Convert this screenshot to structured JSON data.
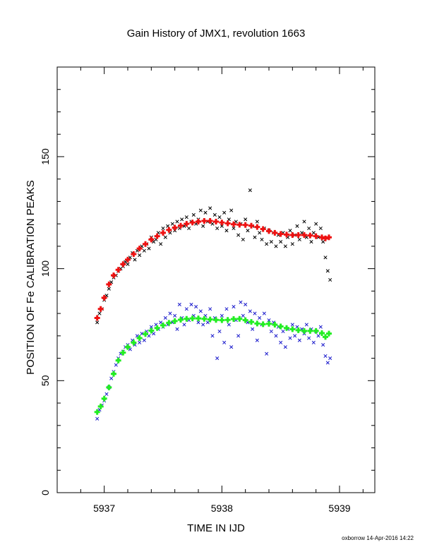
{
  "footer": "oxborrow 14-Apr-2016 14:22",
  "chart_data": {
    "type": "scatter",
    "title": "Gain History of JMX1, revolution 1663",
    "xlabel": "TIME IN IJD",
    "ylabel": "POSITION OF Fe CALIBRATION PEAKS",
    "xlim": [
      5936.6,
      5939.3
    ],
    "ylim": [
      0,
      190
    ],
    "x_ticks": [
      5937,
      5938,
      5939
    ],
    "x_tick_labels": [
      "5937",
      "5938",
      "5939"
    ],
    "y_ticks": [
      0,
      50,
      100,
      150
    ],
    "y_tick_labels": [
      "0",
      "50",
      "100",
      "150"
    ],
    "grid": false,
    "legend": "none",
    "series": [
      {
        "marker": "x",
        "color": "#000000",
        "role": "upper-peak-measurements",
        "points": [
          [
            5936.94,
            76
          ],
          [
            5936.96,
            80
          ],
          [
            5936.98,
            82
          ],
          [
            5937.0,
            86
          ],
          [
            5937.02,
            88
          ],
          [
            5937.04,
            91
          ],
          [
            5937.06,
            94
          ],
          [
            5937.08,
            96
          ],
          [
            5937.1,
            97
          ],
          [
            5937.12,
            99
          ],
          [
            5937.14,
            100
          ],
          [
            5937.16,
            101
          ],
          [
            5937.18,
            103
          ],
          [
            5937.2,
            102
          ],
          [
            5937.22,
            105
          ],
          [
            5937.24,
            107
          ],
          [
            5937.26,
            104
          ],
          [
            5937.28,
            108
          ],
          [
            5937.3,
            106
          ],
          [
            5937.32,
            110
          ],
          [
            5937.34,
            108
          ],
          [
            5937.36,
            111
          ],
          [
            5937.38,
            109
          ],
          [
            5937.4,
            114
          ],
          [
            5937.42,
            112
          ],
          [
            5937.44,
            113
          ],
          [
            5937.46,
            116
          ],
          [
            5937.48,
            111
          ],
          [
            5937.5,
            118
          ],
          [
            5937.52,
            114
          ],
          [
            5937.54,
            119
          ],
          [
            5937.56,
            116
          ],
          [
            5937.58,
            120
          ],
          [
            5937.6,
            117
          ],
          [
            5937.62,
            121
          ],
          [
            5937.64,
            118
          ],
          [
            5937.66,
            122
          ],
          [
            5937.68,
            119
          ],
          [
            5937.7,
            123
          ],
          [
            5937.72,
            118
          ],
          [
            5937.74,
            121
          ],
          [
            5937.76,
            124
          ],
          [
            5937.78,
            120
          ],
          [
            5937.8,
            122
          ],
          [
            5937.82,
            126
          ],
          [
            5937.84,
            119
          ],
          [
            5937.86,
            125
          ],
          [
            5937.88,
            121
          ],
          [
            5937.9,
            127
          ],
          [
            5937.92,
            120
          ],
          [
            5937.94,
            124
          ],
          [
            5937.96,
            118
          ],
          [
            5937.98,
            123
          ],
          [
            5938.0,
            119
          ],
          [
            5938.02,
            125
          ],
          [
            5938.04,
            117
          ],
          [
            5938.06,
            122
          ],
          [
            5938.08,
            126
          ],
          [
            5938.1,
            118
          ],
          [
            5938.12,
            121
          ],
          [
            5938.14,
            115
          ],
          [
            5938.16,
            120
          ],
          [
            5938.18,
            113
          ],
          [
            5938.2,
            122
          ],
          [
            5938.22,
            117
          ],
          [
            5938.24,
            135
          ],
          [
            5938.26,
            119
          ],
          [
            5938.28,
            114
          ],
          [
            5938.3,
            121
          ],
          [
            5938.32,
            116
          ],
          [
            5938.34,
            113
          ],
          [
            5938.36,
            118
          ],
          [
            5938.38,
            111
          ],
          [
            5938.4,
            117
          ],
          [
            5938.42,
            112
          ],
          [
            5938.44,
            116
          ],
          [
            5938.46,
            110
          ],
          [
            5938.48,
            115
          ],
          [
            5938.5,
            112
          ],
          [
            5938.52,
            116
          ],
          [
            5938.54,
            110
          ],
          [
            5938.56,
            114
          ],
          [
            5938.58,
            117
          ],
          [
            5938.6,
            111
          ],
          [
            5938.62,
            115
          ],
          [
            5938.64,
            119
          ],
          [
            5938.66,
            113
          ],
          [
            5938.68,
            116
          ],
          [
            5938.7,
            121
          ],
          [
            5938.72,
            114
          ],
          [
            5938.74,
            118
          ],
          [
            5938.76,
            112
          ],
          [
            5938.78,
            116
          ],
          [
            5938.8,
            120
          ],
          [
            5938.82,
            114
          ],
          [
            5938.84,
            118
          ],
          [
            5938.86,
            112
          ],
          [
            5938.88,
            105
          ],
          [
            5938.9,
            99
          ],
          [
            5938.92,
            95
          ]
        ]
      },
      {
        "marker": "x",
        "color": "#1a1acc",
        "role": "lower-peak-measurements",
        "points": [
          [
            5936.94,
            33
          ],
          [
            5936.96,
            37
          ],
          [
            5936.98,
            39
          ],
          [
            5937.0,
            41
          ],
          [
            5937.02,
            44
          ],
          [
            5937.04,
            47
          ],
          [
            5937.06,
            51
          ],
          [
            5937.08,
            54
          ],
          [
            5937.1,
            57
          ],
          [
            5937.12,
            60
          ],
          [
            5937.14,
            62
          ],
          [
            5937.16,
            63
          ],
          [
            5937.18,
            65
          ],
          [
            5937.2,
            66
          ],
          [
            5937.22,
            64
          ],
          [
            5937.24,
            68
          ],
          [
            5937.26,
            66
          ],
          [
            5937.28,
            70
          ],
          [
            5937.3,
            67
          ],
          [
            5937.32,
            71
          ],
          [
            5937.34,
            68
          ],
          [
            5937.36,
            72
          ],
          [
            5937.38,
            70
          ],
          [
            5937.4,
            74
          ],
          [
            5937.42,
            71
          ],
          [
            5937.44,
            75
          ],
          [
            5937.46,
            73
          ],
          [
            5937.48,
            76
          ],
          [
            5937.5,
            74
          ],
          [
            5937.52,
            78
          ],
          [
            5937.54,
            75
          ],
          [
            5937.56,
            80
          ],
          [
            5937.58,
            76
          ],
          [
            5937.6,
            79
          ],
          [
            5937.62,
            73
          ],
          [
            5937.64,
            84
          ],
          [
            5937.66,
            78
          ],
          [
            5937.68,
            75
          ],
          [
            5937.7,
            82
          ],
          [
            5937.72,
            77
          ],
          [
            5937.74,
            84
          ],
          [
            5937.76,
            79
          ],
          [
            5937.78,
            83
          ],
          [
            5937.8,
            76
          ],
          [
            5937.82,
            81
          ],
          [
            5937.84,
            75
          ],
          [
            5937.86,
            79
          ],
          [
            5937.88,
            76
          ],
          [
            5937.9,
            82
          ],
          [
            5937.92,
            70
          ],
          [
            5937.94,
            78
          ],
          [
            5937.96,
            60
          ],
          [
            5937.98,
            72
          ],
          [
            5938.0,
            79
          ],
          [
            5938.02,
            67
          ],
          [
            5938.04,
            82
          ],
          [
            5938.06,
            75
          ],
          [
            5938.08,
            65
          ],
          [
            5938.1,
            83
          ],
          [
            5938.12,
            77
          ],
          [
            5938.14,
            70
          ],
          [
            5938.16,
            85
          ],
          [
            5938.18,
            79
          ],
          [
            5938.2,
            84
          ],
          [
            5938.22,
            76
          ],
          [
            5938.24,
            81
          ],
          [
            5938.26,
            73
          ],
          [
            5938.28,
            80
          ],
          [
            5938.3,
            68
          ],
          [
            5938.32,
            78
          ],
          [
            5938.34,
            75
          ],
          [
            5938.36,
            80
          ],
          [
            5938.38,
            62
          ],
          [
            5938.4,
            77
          ],
          [
            5938.42,
            72
          ],
          [
            5938.44,
            76
          ],
          [
            5938.46,
            70
          ],
          [
            5938.48,
            74
          ],
          [
            5938.5,
            67
          ],
          [
            5938.52,
            72
          ],
          [
            5938.54,
            65
          ],
          [
            5938.56,
            73
          ],
          [
            5938.58,
            69
          ],
          [
            5938.6,
            75
          ],
          [
            5938.62,
            70
          ],
          [
            5938.64,
            74
          ],
          [
            5938.66,
            68
          ],
          [
            5938.68,
            73
          ],
          [
            5938.7,
            71
          ],
          [
            5938.72,
            75
          ],
          [
            5938.74,
            69
          ],
          [
            5938.76,
            73
          ],
          [
            5938.78,
            67
          ],
          [
            5938.8,
            72
          ],
          [
            5938.82,
            70
          ],
          [
            5938.84,
            74
          ],
          [
            5938.86,
            66
          ],
          [
            5938.88,
            61
          ],
          [
            5938.9,
            58
          ],
          [
            5938.92,
            60
          ]
        ]
      },
      {
        "marker": "+",
        "color": "#ee1111",
        "role": "upper-peak-fit",
        "points": [
          [
            5936.94,
            78
          ],
          [
            5936.97,
            82
          ],
          [
            5937.0,
            87
          ],
          [
            5937.04,
            93
          ],
          [
            5937.08,
            97
          ],
          [
            5937.12,
            99.5
          ],
          [
            5937.16,
            102
          ],
          [
            5937.2,
            104
          ],
          [
            5937.25,
            106.5
          ],
          [
            5937.3,
            109
          ],
          [
            5937.35,
            111
          ],
          [
            5937.4,
            113
          ],
          [
            5937.45,
            114.5
          ],
          [
            5937.5,
            116
          ],
          [
            5937.55,
            117.3
          ],
          [
            5937.6,
            118.3
          ],
          [
            5937.65,
            119.2
          ],
          [
            5937.7,
            120
          ],
          [
            5937.75,
            120.6
          ],
          [
            5937.8,
            121
          ],
          [
            5937.85,
            121.3
          ],
          [
            5937.9,
            121.3
          ],
          [
            5937.95,
            121
          ],
          [
            5938.0,
            120.6
          ],
          [
            5938.05,
            120.2
          ],
          [
            5938.1,
            119.8
          ],
          [
            5938.15,
            119.6
          ],
          [
            5938.2,
            119.5
          ],
          [
            5938.25,
            119.2
          ],
          [
            5938.3,
            118.6
          ],
          [
            5938.35,
            117.7
          ],
          [
            5938.4,
            116.8
          ],
          [
            5938.45,
            116
          ],
          [
            5938.5,
            115.5
          ],
          [
            5938.55,
            115.2
          ],
          [
            5938.6,
            115
          ],
          [
            5938.65,
            115
          ],
          [
            5938.7,
            115
          ],
          [
            5938.75,
            114.8
          ],
          [
            5938.8,
            114.5
          ],
          [
            5938.85,
            114
          ],
          [
            5938.88,
            113.5
          ],
          [
            5938.91,
            114
          ]
        ]
      },
      {
        "marker": "+",
        "color": "#22ee22",
        "role": "lower-peak-fit",
        "points": [
          [
            5936.94,
            36
          ],
          [
            5936.97,
            38.5
          ],
          [
            5937.0,
            42
          ],
          [
            5937.04,
            47
          ],
          [
            5937.08,
            53
          ],
          [
            5937.12,
            59
          ],
          [
            5937.16,
            62.5
          ],
          [
            5937.2,
            65
          ],
          [
            5937.25,
            67
          ],
          [
            5937.3,
            69
          ],
          [
            5937.35,
            70.8
          ],
          [
            5937.4,
            72.3
          ],
          [
            5937.45,
            73.5
          ],
          [
            5937.5,
            74.7
          ],
          [
            5937.55,
            75.8
          ],
          [
            5937.6,
            76.6
          ],
          [
            5937.65,
            77.2
          ],
          [
            5937.7,
            77.6
          ],
          [
            5937.75,
            77.8
          ],
          [
            5937.8,
            77.8
          ],
          [
            5937.85,
            77.6
          ],
          [
            5937.9,
            77.3
          ],
          [
            5937.95,
            77.1
          ],
          [
            5938.0,
            77
          ],
          [
            5938.05,
            77.1
          ],
          [
            5938.1,
            77.5
          ],
          [
            5938.15,
            77.6
          ],
          [
            5938.2,
            77
          ],
          [
            5938.25,
            76.2
          ],
          [
            5938.3,
            75.5
          ],
          [
            5938.35,
            75.2
          ],
          [
            5938.4,
            75.4
          ],
          [
            5938.45,
            75
          ],
          [
            5938.5,
            74.2
          ],
          [
            5938.55,
            73.5
          ],
          [
            5938.6,
            73
          ],
          [
            5938.65,
            72.5
          ],
          [
            5938.7,
            72.2
          ],
          [
            5938.75,
            72.2
          ],
          [
            5938.8,
            72.2
          ],
          [
            5938.85,
            71.2
          ],
          [
            5938.88,
            69.5
          ],
          [
            5938.91,
            71
          ]
        ]
      }
    ]
  },
  "colors": {
    "frame": "#000000",
    "background": "#ffffff"
  }
}
